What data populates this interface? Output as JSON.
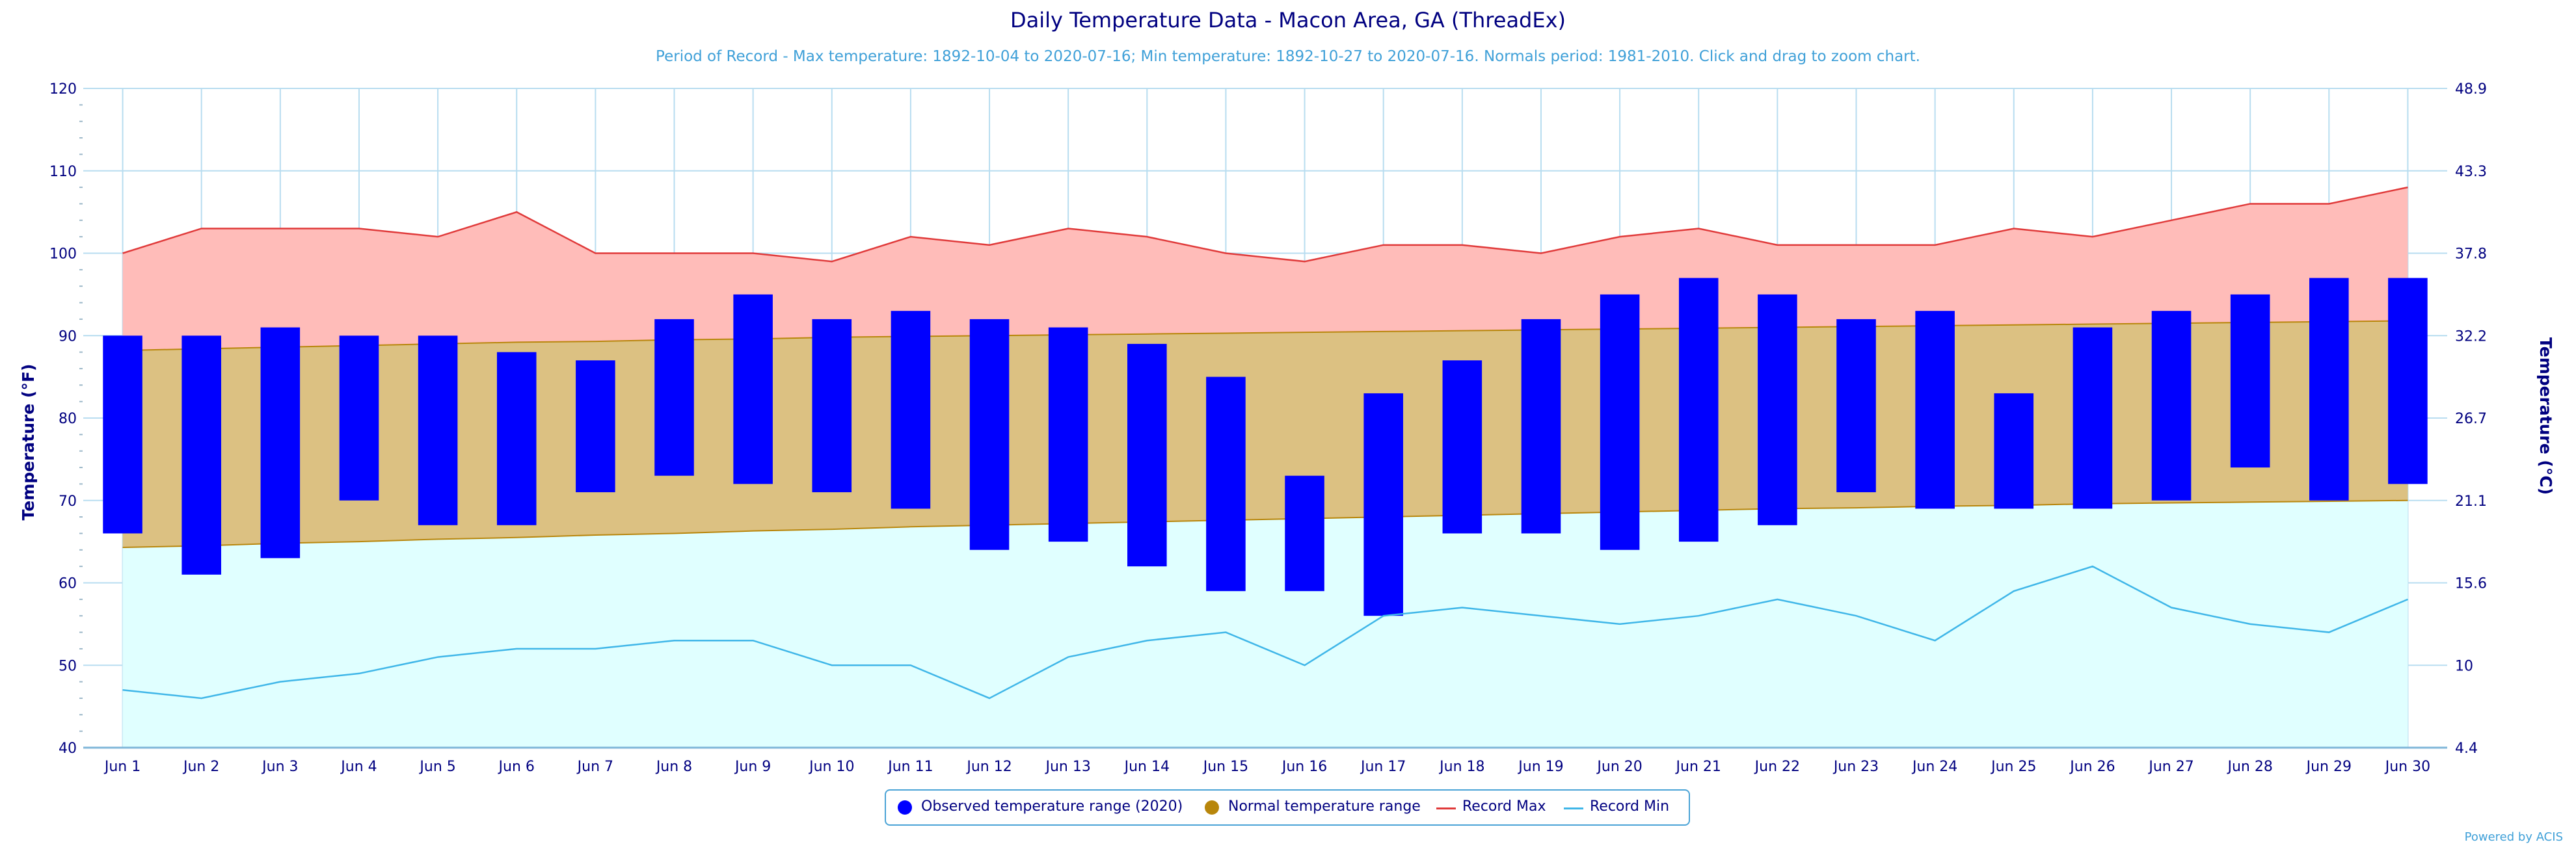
{
  "title": "Daily Temperature Data - Macon Area, GA (ThreadEx)",
  "subtitle": "Period of Record - Max temperature: 1892-10-04 to 2020-07-16; Min temperature: 1892-10-27 to 2020-07-16. Normals period: 1981-2010. Click and drag to zoom chart.",
  "credit": "Powered by ACIS",
  "colors": {
    "observed": "#0000ff",
    "normal_fill": "#dcc182",
    "normal_line": "#b8860b",
    "record_max_fill": "#ffbcb9",
    "record_max_line": "#e03a3a",
    "record_min_fill": "#e0ffff",
    "record_min_line": "#3fb6e8",
    "grid": "#b8ddf0",
    "axis_text": "#000080"
  },
  "chart_data": {
    "type": "bar",
    "title": "Daily Temperature Data - Macon Area, GA (ThreadEx)",
    "ylabel": "Temperature (°F)",
    "ylabel_right": "Temperature (°C)",
    "ylim": [
      40,
      120
    ],
    "yticks": [
      40,
      50,
      60,
      70,
      80,
      90,
      100,
      110,
      120
    ],
    "yticks_right": [
      "4.4",
      "10",
      "15.6",
      "21.1",
      "26.7",
      "32.2",
      "37.8",
      "43.3",
      "48.9"
    ],
    "categories": [
      "Jun 1",
      "Jun 2",
      "Jun 3",
      "Jun 4",
      "Jun 5",
      "Jun 6",
      "Jun 7",
      "Jun 8",
      "Jun 9",
      "Jun 10",
      "Jun 11",
      "Jun 12",
      "Jun 13",
      "Jun 14",
      "Jun 15",
      "Jun 16",
      "Jun 17",
      "Jun 18",
      "Jun 19",
      "Jun 20",
      "Jun 21",
      "Jun 22",
      "Jun 23",
      "Jun 24",
      "Jun 25",
      "Jun 26",
      "Jun 27",
      "Jun 28",
      "Jun 29",
      "Jun 30"
    ],
    "grid": true,
    "legend_position": "bottom",
    "series": [
      {
        "name": "Observed temperature range (2020)",
        "type": "range-bar",
        "low": [
          66,
          61,
          63,
          70,
          67,
          67,
          71,
          73,
          72,
          71,
          69,
          64,
          65,
          62,
          59,
          59,
          56,
          66,
          66,
          64,
          65,
          67,
          71,
          69,
          69,
          69,
          70,
          74,
          70,
          72
        ],
        "high": [
          90,
          90,
          91,
          90,
          90,
          88,
          87,
          92,
          95,
          92,
          93,
          92,
          91,
          89,
          85,
          73,
          83,
          87,
          92,
          95,
          97,
          95,
          92,
          93,
          83,
          91,
          93,
          95,
          97,
          97
        ]
      },
      {
        "name": "Normal temperature range",
        "type": "range-area",
        "low": [
          64.3,
          64.5,
          64.8,
          65.0,
          65.3,
          65.5,
          65.8,
          66.0,
          66.3,
          66.5,
          66.8,
          67.0,
          67.2,
          67.4,
          67.6,
          67.8,
          68.0,
          68.2,
          68.4,
          68.6,
          68.8,
          69.0,
          69.1,
          69.3,
          69.4,
          69.6,
          69.7,
          69.8,
          69.9,
          70.0
        ],
        "high": [
          88.2,
          88.4,
          88.6,
          88.8,
          89.0,
          89.2,
          89.3,
          89.5,
          89.6,
          89.8,
          89.9,
          90.0,
          90.1,
          90.2,
          90.3,
          90.4,
          90.5,
          90.6,
          90.7,
          90.8,
          90.9,
          91.0,
          91.1,
          91.2,
          91.3,
          91.4,
          91.5,
          91.6,
          91.7,
          91.8
        ]
      },
      {
        "name": "Record Max",
        "type": "line",
        "values": [
          100,
          103,
          103,
          103,
          102,
          105,
          100,
          100,
          100,
          99,
          102,
          101,
          103,
          102,
          100,
          99,
          101,
          101,
          100,
          102,
          103,
          101,
          101,
          101,
          103,
          102,
          104,
          106,
          106,
          108
        ]
      },
      {
        "name": "Record Min",
        "type": "line",
        "values": [
          47,
          46,
          48,
          49,
          51,
          52,
          52,
          53,
          53,
          50,
          50,
          46,
          51,
          53,
          54,
          50,
          56,
          57,
          56,
          55,
          56,
          58,
          56,
          53,
          59,
          62,
          57,
          55,
          54,
          58
        ]
      }
    ]
  }
}
